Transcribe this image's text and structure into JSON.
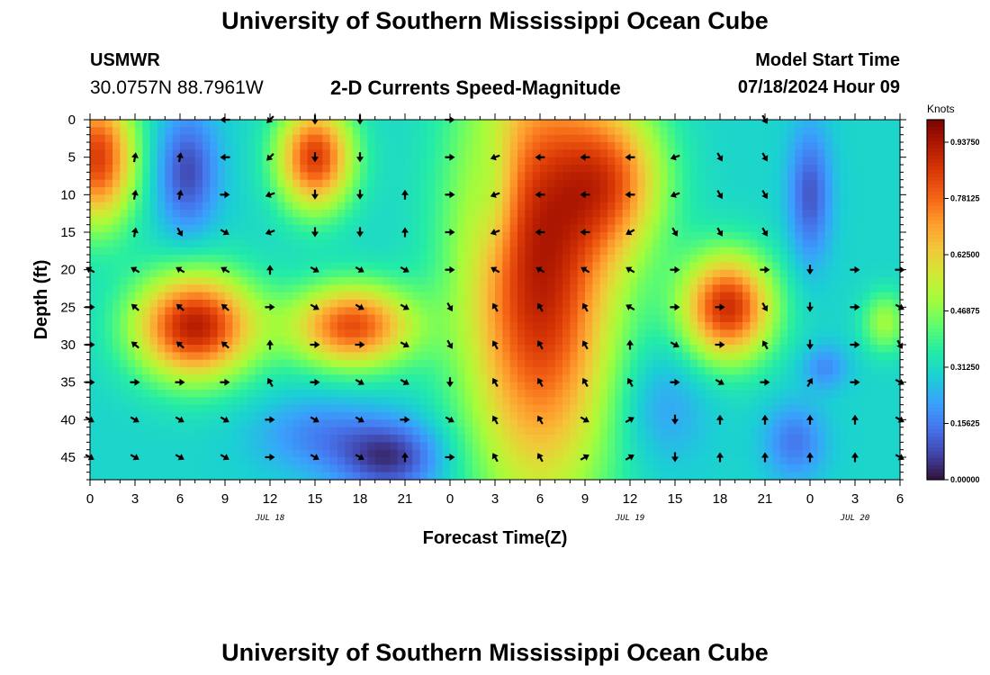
{
  "titles": {
    "main": "University of Southern Mississippi Ocean Cube",
    "bottom": "University of Southern Mississippi Ocean Cube"
  },
  "header": {
    "station": "USMWR",
    "coords": "30.0757N  88.7961W",
    "subtitle": "2-D Currents Speed-Magnitude",
    "model_label": "Model Start Time",
    "model_time": "07/18/2024 Hour 09"
  },
  "chart_data": {
    "type": "heatmap",
    "title": "2-D Currents Speed-Magnitude",
    "xlabel": "Forecast Time(Z)",
    "ylabel": "Depth (ft)",
    "x_ticks": [
      "0",
      "3",
      "6",
      "9",
      "12",
      "15",
      "18",
      "21",
      "0",
      "3",
      "6",
      "9",
      "12",
      "15",
      "18",
      "21",
      "0",
      "3",
      "6"
    ],
    "x_hours": [
      0,
      3,
      6,
      9,
      12,
      15,
      18,
      21,
      24,
      27,
      30,
      33,
      36,
      39,
      42,
      45,
      48,
      51,
      54
    ],
    "xlim": [
      0,
      54
    ],
    "y_ticks": [
      "0",
      "5",
      "10",
      "15",
      "20",
      "25",
      "30",
      "35",
      "40",
      "45"
    ],
    "y_values": [
      0,
      5,
      10,
      15,
      20,
      25,
      30,
      35,
      40,
      45
    ],
    "ylim": [
      0,
      48
    ],
    "date_labels": [
      {
        "text": "JUL 18",
        "hour": 12
      },
      {
        "text": "JUL 19",
        "hour": 36
      },
      {
        "text": "JUL 20",
        "hour": 51
      }
    ],
    "colorbar": {
      "unit": "Knots",
      "range": [
        0,
        1
      ],
      "labels": [
        "0.00000",
        "0.15625",
        "0.31250",
        "0.46875",
        "0.62500",
        "0.78125",
        "0.93750"
      ],
      "values": [
        0,
        0.15625,
        0.3125,
        0.46875,
        0.625,
        0.78125,
        0.9375
      ],
      "colors": [
        "#30123b",
        "#4145ab",
        "#4675ed",
        "#39a2fc",
        "#1bcfd4",
        "#24eca6",
        "#61fc6c",
        "#a4fc3b",
        "#d1e834",
        "#f3c63a",
        "#fe9b2d",
        "#f36315",
        "#d93806",
        "#b11901",
        "#7a0402"
      ]
    },
    "speed_field": {
      "base": 0.3,
      "blobs": [
        {
          "t": 0.5,
          "d": 5,
          "rt": 2.5,
          "rd": 9,
          "a": 0.55
        },
        {
          "t": 6.5,
          "d": 7,
          "rt": 2.0,
          "rd": 8,
          "a": -0.22
        },
        {
          "t": 15,
          "d": 5,
          "rt": 2.5,
          "rd": 7,
          "a": 0.55
        },
        {
          "t": 7,
          "d": 27.5,
          "rt": 4.0,
          "rd": 7,
          "a": 0.62
        },
        {
          "t": 17.5,
          "d": 27.5,
          "rt": 4.0,
          "rd": 5.5,
          "a": 0.52
        },
        {
          "t": 30,
          "d": 20,
          "rt": 5.0,
          "rd": 30,
          "a": 0.62
        },
        {
          "t": 35,
          "d": 8,
          "rt": 3.5,
          "rd": 10,
          "a": 0.35
        },
        {
          "t": 42.5,
          "d": 25,
          "rt": 3.0,
          "rd": 7,
          "a": 0.58
        },
        {
          "t": 48,
          "d": 10,
          "rt": 1.4,
          "rd": 9,
          "a": -0.2
        },
        {
          "t": 20,
          "d": 45,
          "rt": 3.5,
          "rd": 5,
          "a": -0.25
        },
        {
          "t": 15,
          "d": 42,
          "rt": 4.0,
          "rd": 5,
          "a": -0.12
        },
        {
          "t": 47,
          "d": 43,
          "rt": 2.0,
          "rd": 5,
          "a": -0.15
        },
        {
          "t": 49,
          "d": 33,
          "rt": 1.5,
          "rd": 3,
          "a": -0.12
        },
        {
          "t": 53,
          "d": 27,
          "rt": 1.5,
          "rd": 4,
          "a": 0.2
        },
        {
          "t": 27,
          "d": 10,
          "rt": 1.5,
          "rd": 9,
          "a": -0.12
        },
        {
          "t": 38,
          "d": 38,
          "rt": 3.0,
          "rd": 8,
          "a": -0.1
        }
      ]
    },
    "vectors": {
      "hours": [
        0,
        3,
        6,
        9,
        12,
        15,
        18,
        21,
        24,
        27,
        30,
        33,
        36,
        39,
        42,
        45,
        48,
        51,
        54
      ],
      "depths": [
        0,
        5,
        10,
        15,
        20,
        25,
        30,
        35,
        40,
        45
      ],
      "angles_deg": [
        [
          null,
          null,
          null,
          180,
          225,
          270,
          270,
          null,
          0,
          null,
          null,
          null,
          null,
          null,
          null,
          300,
          null,
          null,
          null
        ],
        [
          null,
          80,
          80,
          180,
          225,
          270,
          270,
          null,
          0,
          200,
          180,
          180,
          180,
          200,
          300,
          300,
          null,
          null,
          null
        ],
        [
          null,
          80,
          80,
          0,
          200,
          270,
          270,
          90,
          0,
          200,
          180,
          180,
          180,
          200,
          300,
          300,
          null,
          null,
          null
        ],
        [
          null,
          80,
          300,
          330,
          200,
          270,
          270,
          90,
          0,
          200,
          180,
          180,
          210,
          300,
          300,
          300,
          null,
          null,
          null
        ],
        [
          150,
          150,
          150,
          150,
          90,
          330,
          330,
          330,
          0,
          150,
          150,
          150,
          150,
          0,
          null,
          0,
          270,
          0,
          0
        ],
        [
          0,
          140,
          140,
          140,
          0,
          330,
          330,
          330,
          300,
          120,
          120,
          120,
          150,
          0,
          0,
          300,
          270,
          0,
          330
        ],
        [
          0,
          140,
          140,
          140,
          90,
          0,
          0,
          330,
          300,
          120,
          120,
          120,
          90,
          330,
          0,
          120,
          270,
          0,
          300
        ],
        [
          0,
          0,
          0,
          0,
          120,
          0,
          330,
          330,
          270,
          120,
          120,
          120,
          120,
          0,
          330,
          0,
          60,
          0,
          330
        ],
        [
          330,
          330,
          330,
          330,
          0,
          330,
          330,
          0,
          330,
          120,
          120,
          330,
          30,
          270,
          90,
          90,
          90,
          90,
          330
        ],
        [
          330,
          330,
          330,
          330,
          0,
          330,
          330,
          90,
          0,
          120,
          120,
          30,
          30,
          270,
          90,
          90,
          90,
          90,
          330
        ]
      ]
    }
  }
}
